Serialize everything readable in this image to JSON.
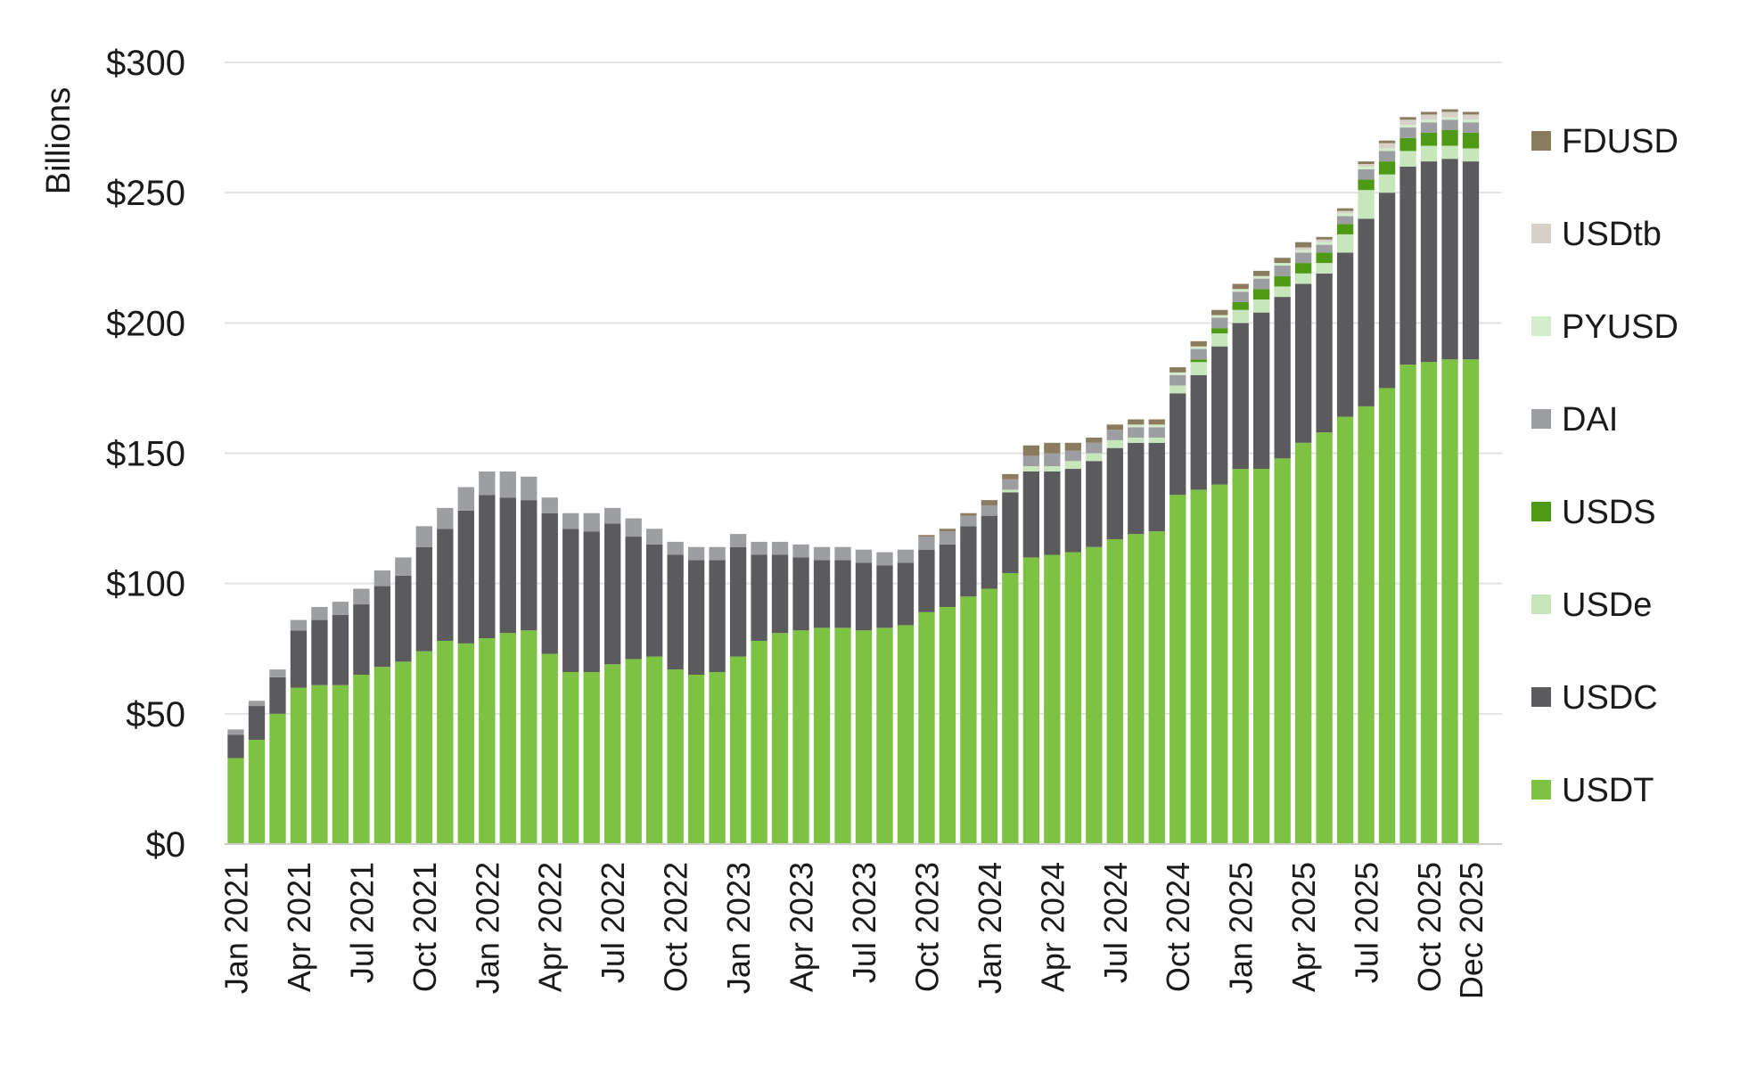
{
  "chart_data": {
    "type": "bar",
    "stacked": true,
    "title": "",
    "xlabel": "",
    "ylabel": "Billions",
    "ylim": [
      0,
      300
    ],
    "yticks": [
      0,
      50,
      100,
      150,
      200,
      250,
      300
    ],
    "ytick_labels": [
      "$0",
      "$50",
      "$100",
      "$150",
      "$200",
      "$250",
      "$300"
    ],
    "grid": true,
    "legend_position": "right",
    "legend_order": [
      "FDUSD",
      "USDtb",
      "PYUSD",
      "DAI",
      "USDS",
      "USDe",
      "USDC",
      "USDT"
    ],
    "xtick_labels": [
      {
        "index": 0,
        "label": "Jan 2021"
      },
      {
        "index": 3,
        "label": "Apr 2021"
      },
      {
        "index": 6,
        "label": "Jul 2021"
      },
      {
        "index": 9,
        "label": "Oct 2021"
      },
      {
        "index": 12,
        "label": "Jan 2022"
      },
      {
        "index": 15,
        "label": "Apr 2022"
      },
      {
        "index": 18,
        "label": "Jul 2022"
      },
      {
        "index": 21,
        "label": "Oct 2022"
      },
      {
        "index": 24,
        "label": "Jan 2023"
      },
      {
        "index": 27,
        "label": "Apr 2023"
      },
      {
        "index": 30,
        "label": "Jul 2023"
      },
      {
        "index": 33,
        "label": "Oct 2023"
      },
      {
        "index": 36,
        "label": "Jan 2024"
      },
      {
        "index": 39,
        "label": "Apr 2024"
      },
      {
        "index": 42,
        "label": "Jul 2024"
      },
      {
        "index": 45,
        "label": "Oct 2024"
      },
      {
        "index": 48,
        "label": "Jan 2025"
      },
      {
        "index": 51,
        "label": "Apr 2025"
      },
      {
        "index": 54,
        "label": "Jul 2025"
      },
      {
        "index": 57,
        "label": "Oct 2025"
      },
      {
        "index": 59,
        "label": "Dec 2025"
      }
    ],
    "categories": [
      "Jan 2021",
      "Feb 2021",
      "Mar 2021",
      "Apr 2021",
      "May 2021",
      "Jun 2021",
      "Jul 2021",
      "Aug 2021",
      "Sep 2021",
      "Oct 2021",
      "Nov 2021",
      "Dec 2021",
      "Jan 2022",
      "Feb 2022",
      "Mar 2022",
      "Apr 2022",
      "May 2022",
      "Jun 2022",
      "Jul 2022",
      "Aug 2022",
      "Sep 2022",
      "Oct 2022",
      "Nov 2022",
      "Dec 2022",
      "Jan 2023",
      "Feb 2023",
      "Mar 2023",
      "Apr 2023",
      "May 2023",
      "Jun 2023",
      "Jul 2023",
      "Aug 2023",
      "Sep 2023",
      "Oct 2023",
      "Nov 2023",
      "Dec 2023",
      "Jan 2024",
      "Feb 2024",
      "Mar 2024",
      "Apr 2024",
      "May 2024",
      "Jun 2024",
      "Jul 2024",
      "Aug 2024",
      "Sep 2024",
      "Oct 2024",
      "Nov 2024",
      "Dec 2024",
      "Jan 2025",
      "Feb 2025",
      "Mar 2025",
      "Apr 2025",
      "May 2025",
      "Jun 2025",
      "Jul 2025",
      "Aug 2025",
      "Sep 2025",
      "Oct 2025",
      "Nov 2025",
      "Dec 2025"
    ],
    "series": [
      {
        "name": "USDT",
        "color": "#7dc242",
        "values": [
          33,
          40,
          50,
          60,
          61,
          61,
          65,
          68,
          70,
          74,
          78,
          77,
          79,
          81,
          82,
          73,
          66,
          66,
          69,
          71,
          72,
          67,
          65,
          66,
          72,
          78,
          81,
          82,
          83,
          83,
          82,
          83,
          84,
          89,
          91,
          95,
          98,
          104,
          110,
          111,
          112,
          114,
          117,
          119,
          120,
          134,
          136,
          138,
          144,
          144,
          148,
          154,
          158,
          164,
          168,
          175,
          184,
          185,
          186,
          186
        ]
      },
      {
        "name": "USDC",
        "color": "#5b5b5d",
        "values": [
          9,
          13,
          14,
          22,
          25,
          27,
          27,
          31,
          33,
          40,
          43,
          51,
          55,
          52,
          50,
          54,
          55,
          54,
          54,
          47,
          43,
          44,
          44,
          43,
          42,
          33,
          30,
          28,
          26,
          26,
          26,
          24,
          24,
          24,
          24,
          27,
          28,
          31,
          33,
          32,
          32,
          33,
          35,
          35,
          34,
          39,
          44,
          53,
          56,
          60,
          62,
          61,
          61,
          63,
          72,
          75,
          76,
          77,
          77,
          76
        ]
      },
      {
        "name": "USDe",
        "color": "#c8e6bc",
        "values": [
          0,
          0,
          0,
          0,
          0,
          0,
          0,
          0,
          0,
          0,
          0,
          0,
          0,
          0,
          0,
          0,
          0,
          0,
          0,
          0,
          0,
          0,
          0,
          0,
          0,
          0,
          0,
          0,
          0,
          0,
          0,
          0,
          0,
          0,
          0,
          0,
          0,
          1,
          2,
          2,
          3,
          3,
          3,
          2,
          2,
          3,
          5,
          5,
          5,
          5,
          4,
          4,
          4,
          7,
          11,
          7,
          6,
          6,
          5,
          5
        ]
      },
      {
        "name": "USDS",
        "color": "#4f9a14",
        "values": [
          0,
          0,
          0,
          0,
          0,
          0,
          0,
          0,
          0,
          0,
          0,
          0,
          0,
          0,
          0,
          0,
          0,
          0,
          0,
          0,
          0,
          0,
          0,
          0,
          0,
          0,
          0,
          0,
          0,
          0,
          0,
          0,
          0,
          0,
          0,
          0,
          0,
          0,
          0,
          0,
          0,
          0,
          0,
          0,
          0,
          0,
          1,
          2,
          3,
          4,
          4,
          4,
          4,
          4,
          4,
          5,
          5,
          5,
          6,
          6
        ]
      },
      {
        "name": "DAI",
        "color": "#9d9ea2",
        "values": [
          2,
          2,
          3,
          4,
          5,
          5,
          6,
          6,
          7,
          8,
          8,
          9,
          9,
          10,
          9,
          6,
          6,
          7,
          6,
          7,
          6,
          5,
          5,
          5,
          5,
          5,
          5,
          5,
          5,
          5,
          5,
          5,
          5,
          5,
          5,
          4,
          4,
          4,
          4,
          5,
          4,
          4,
          4,
          4,
          4,
          4,
          4,
          4,
          4,
          4,
          4,
          4,
          3,
          3,
          4,
          4,
          4,
          4,
          4,
          4
        ]
      },
      {
        "name": "PYUSD",
        "color": "#d3eccb",
        "values": [
          0,
          0,
          0,
          0,
          0,
          0,
          0,
          0,
          0,
          0,
          0,
          0,
          0,
          0,
          0,
          0,
          0,
          0,
          0,
          0,
          0,
          0,
          0,
          0,
          0,
          0,
          0,
          0,
          0,
          0,
          0,
          0,
          0,
          0,
          0,
          0,
          0,
          0,
          0,
          0,
          0,
          0,
          0,
          1,
          1,
          1,
          1,
          1,
          1,
          1,
          1,
          1,
          1,
          1,
          1,
          1,
          1,
          1,
          1,
          1
        ]
      },
      {
        "name": "USDtb",
        "color": "#d7d2c7",
        "values": [
          0,
          0,
          0,
          0,
          0,
          0,
          0,
          0,
          0,
          0,
          0,
          0,
          0,
          0,
          0,
          0,
          0,
          0,
          0,
          0,
          0,
          0,
          0,
          0,
          0,
          0,
          0,
          0,
          0,
          0,
          0,
          0,
          0,
          0,
          0,
          0,
          0,
          0,
          0,
          0,
          0,
          0,
          0,
          0,
          0,
          0,
          0,
          0,
          0,
          0,
          0,
          1,
          1,
          1,
          1,
          2,
          2,
          2,
          2,
          2
        ]
      },
      {
        "name": "FDUSD",
        "color": "#8a7d5f",
        "values": [
          0,
          0,
          0,
          0,
          0,
          0,
          0,
          0,
          0,
          0,
          0,
          0,
          0,
          0,
          0,
          0,
          0,
          0,
          0,
          0,
          0,
          0,
          0,
          0,
          0,
          0,
          0,
          0,
          0,
          0,
          0,
          0,
          0,
          0.6,
          1,
          1,
          2,
          2,
          4,
          4,
          3,
          2,
          2,
          2,
          2,
          2,
          2,
          2,
          2,
          2,
          2,
          2,
          1,
          1,
          1,
          1,
          1,
          1,
          1,
          1
        ]
      }
    ]
  }
}
